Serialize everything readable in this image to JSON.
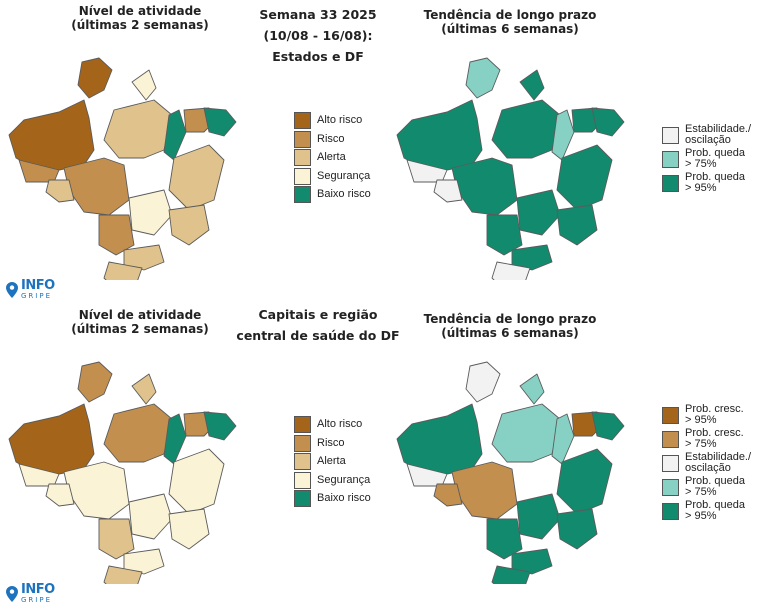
{
  "colors": {
    "alto_risco": "#a4651a",
    "risco": "#c28f4f",
    "alerta": "#dfc28c",
    "seguranca": "#fbf3d6",
    "baixo_risco": "#128a6e",
    "estabilidade": "#f2f2f2",
    "queda75": "#86d1c4",
    "queda95": "#128a6e",
    "cresc95": "#a4651a",
    "cresc75": "#c28f4f"
  },
  "top": {
    "left_title": "Nível de atividade\n(últimas 2 semanas)",
    "center_title": "Semana 33 2025\n(10/08 - 16/08):\nEstados e DF",
    "right_title": "Tendência de longo prazo\n(últimas 6 semanas)",
    "activity_legend": [
      {
        "label": "Alto risco",
        "color": "alto_risco"
      },
      {
        "label": "Risco",
        "color": "risco"
      },
      {
        "label": "Alerta",
        "color": "alerta"
      },
      {
        "label": "Segurança",
        "color": "seguranca"
      },
      {
        "label": "Baixo risco",
        "color": "baixo_risco"
      }
    ],
    "trend_legend": [
      {
        "label": "Estabilidade./\noscilação",
        "color": "estabilidade"
      },
      {
        "label": "Prob. queda\n> 75%",
        "color": "queda75"
      },
      {
        "label": "Prob. queda\n> 95%",
        "color": "queda95"
      }
    ],
    "activity_regions": [
      "alto_risco",
      "alto_risco",
      "risco",
      "alerta",
      "seguranca",
      "baixo_risco",
      "risco",
      "baixo_risco",
      "risco",
      "alerta",
      "alerta",
      "seguranca",
      "alerta",
      "risco",
      "alerta",
      "alerta"
    ],
    "trend_regions": [
      "queda95",
      "queda75",
      "estabilidade",
      "queda95",
      "queda95",
      "queda75",
      "queda95",
      "queda95",
      "queda95",
      "estabilidade",
      "queda95",
      "queda95",
      "queda95",
      "queda95",
      "queda95",
      "estabilidade"
    ]
  },
  "bottom": {
    "left_title": "Nível de atividade\n(últimas 2 semanas)",
    "center_title": "Capitais e região\ncentral de saúde do DF",
    "right_title": "Tendência de longo prazo\n(últimas 6 semanas)",
    "activity_legend": [
      {
        "label": "Alto risco",
        "color": "alto_risco"
      },
      {
        "label": "Risco",
        "color": "risco"
      },
      {
        "label": "Alerta",
        "color": "alerta"
      },
      {
        "label": "Segurança",
        "color": "seguranca"
      },
      {
        "label": "Baixo risco",
        "color": "baixo_risco"
      }
    ],
    "trend_legend": [
      {
        "label": "Prob. cresc.\n> 95%",
        "color": "cresc95"
      },
      {
        "label": "Prob. cresc.\n> 75%",
        "color": "cresc75"
      },
      {
        "label": "Estabilidade./\noscilação",
        "color": "estabilidade"
      },
      {
        "label": "Prob. queda\n> 75%",
        "color": "queda75"
      },
      {
        "label": "Prob. queda\n> 95%",
        "color": "queda95"
      }
    ],
    "activity_regions": [
      "alto_risco",
      "risco",
      "seguranca",
      "risco",
      "alerta",
      "baixo_risco",
      "risco",
      "baixo_risco",
      "seguranca",
      "seguranca",
      "seguranca",
      "seguranca",
      "seguranca",
      "alerta",
      "seguranca",
      "alerta"
    ],
    "trend_regions": [
      "queda95",
      "estabilidade",
      "estabilidade",
      "queda75",
      "queda75",
      "queda75",
      "cresc95",
      "queda95",
      "risco_t",
      "cresc75",
      "queda95",
      "queda95",
      "queda95",
      "queda95",
      "queda95",
      "queda95"
    ]
  },
  "logo": {
    "top": "INFO",
    "bottom": "GRIPE"
  }
}
